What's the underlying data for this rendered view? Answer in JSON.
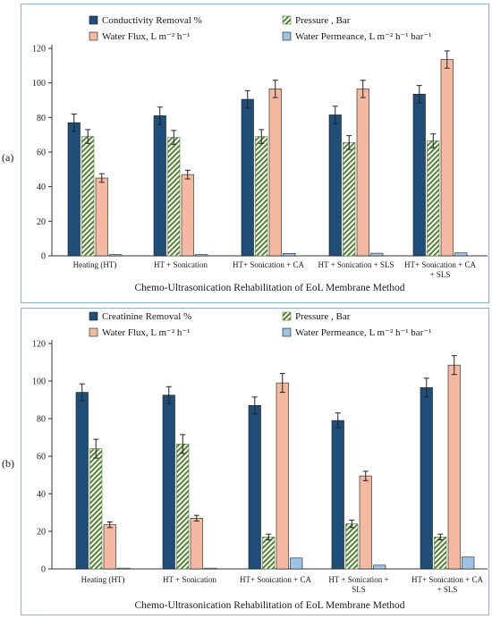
{
  "panels": [
    {
      "id": "a",
      "label": "(a)"
    },
    {
      "id": "b",
      "label": "(b)"
    }
  ],
  "chart_data": [
    {
      "type": "bar",
      "panel": "(a)",
      "title": "",
      "xlabel": "Chemo-Ultrasonication Rehabilitation of EoL Membrane Method",
      "ylabel": "",
      "ylim": [
        0,
        120
      ],
      "yticks": [
        0,
        20,
        40,
        60,
        80,
        100,
        120
      ],
      "grid": false,
      "legend_position": "top",
      "categories": [
        [
          "Heating (HT)"
        ],
        [
          "HT + Sonication"
        ],
        [
          "HT+ Sonication + CA"
        ],
        [
          "HT + Sonication + SLS"
        ],
        [
          "HT+ Sonication + CA",
          "+ SLS"
        ]
      ],
      "series": [
        {
          "name": "Conductivity Removal %",
          "fill": "#1f4e79",
          "pattern": "solid",
          "values": [
            77,
            81,
            90.5,
            81.5,
            93.5
          ],
          "errors": [
            5,
            5,
            5,
            5,
            5
          ]
        },
        {
          "name": "Pressure , Bar",
          "fill": "#a9d18e",
          "pattern": "hatch",
          "values": [
            69,
            68.5,
            69,
            65.5,
            66.5
          ],
          "errors": [
            4,
            4,
            4,
            4,
            4
          ]
        },
        {
          "name": "Water Flux, L m⁻² h⁻¹",
          "fill": "#f4b9a0",
          "pattern": "solid",
          "values": [
            45,
            47,
            96.5,
            96.5,
            113.5
          ],
          "errors": [
            2.5,
            2.5,
            5,
            5,
            5
          ]
        },
        {
          "name": "Water Permeance, L m⁻² h⁻¹ bar⁻¹",
          "fill": "#9dc3e6",
          "pattern": "solid",
          "values": [
            0.7,
            0.7,
            1.4,
            1.5,
            1.7
          ],
          "errors": [
            0,
            0,
            0,
            0,
            0
          ]
        }
      ]
    },
    {
      "type": "bar",
      "panel": "(b)",
      "title": "",
      "xlabel": "Chemo-Ultrasonication Rehabilitation of EoL Membrane Method",
      "ylabel": "",
      "ylim": [
        0,
        120
      ],
      "yticks": [
        0,
        20,
        40,
        60,
        80,
        100,
        120
      ],
      "grid": false,
      "legend_position": "top",
      "categories": [
        [
          "Heating (HT)"
        ],
        [
          "HT + Sonication"
        ],
        [
          "HT+ Sonication + CA"
        ],
        [
          "HT + Sonication +",
          "SLS"
        ],
        [
          "HT+ Sonication + CA",
          "+ SLS"
        ]
      ],
      "series": [
        {
          "name": "Creatinine Removal %",
          "fill": "#1f4e79",
          "pattern": "solid",
          "values": [
            94,
            92.5,
            87,
            79,
            96.5
          ],
          "errors": [
            4.5,
            4.5,
            4.5,
            4,
            5
          ]
        },
        {
          "name": "Pressure , Bar",
          "fill": "#a9d18e",
          "pattern": "hatch",
          "values": [
            64,
            66.5,
            17,
            24,
            17
          ],
          "errors": [
            5,
            5,
            1.5,
            2,
            1.5
          ]
        },
        {
          "name": "Water Flux, L m⁻² h⁻¹",
          "fill": "#f4b9a0",
          "pattern": "solid",
          "values": [
            23.5,
            27,
            99,
            49.5,
            108.5
          ],
          "errors": [
            1.5,
            1.5,
            5,
            2.5,
            5
          ]
        },
        {
          "name": "Water Permeance, L m⁻² h⁻¹ bar⁻¹",
          "fill": "#9dc3e6",
          "pattern": "solid",
          "values": [
            0.4,
            0.4,
            5.8,
            2,
            6.3
          ],
          "errors": [
            0,
            0,
            0,
            0,
            0
          ]
        }
      ]
    }
  ]
}
